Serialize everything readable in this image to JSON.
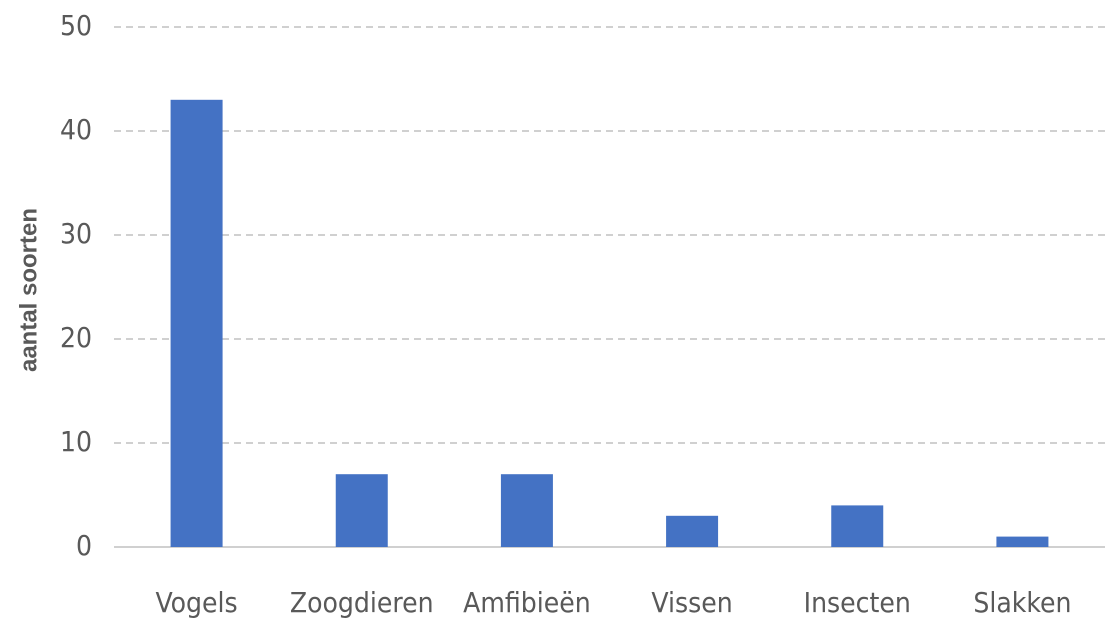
{
  "chart_data": {
    "type": "bar",
    "y_label": "aantal soorten",
    "categories": [
      "Vogels",
      "Zoogdieren",
      "Amfibieën",
      "Vissen",
      "Insecten",
      "Slakken"
    ],
    "values": [
      43,
      7,
      7,
      3,
      4,
      1
    ],
    "color": "#4472c4",
    "ylim": [
      0,
      50
    ],
    "yticks": [
      0,
      10,
      20,
      30,
      40,
      50
    ],
    "grid": true
  }
}
